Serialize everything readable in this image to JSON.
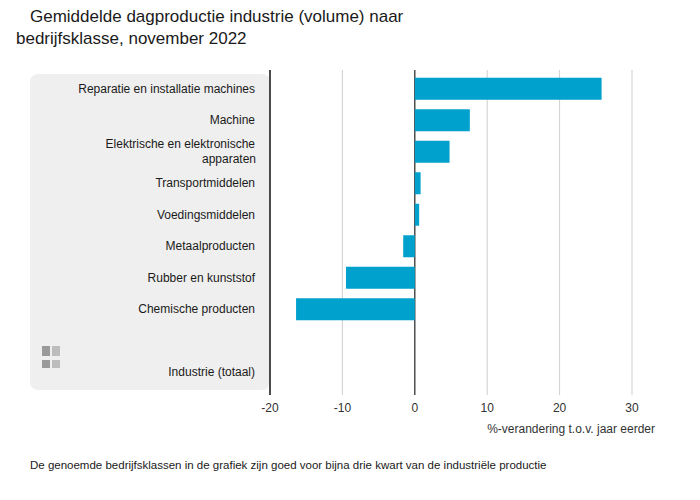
{
  "chart_data": {
    "type": "bar",
    "orientation": "horizontal",
    "title": "Gemiddelde dagproductie industrie (volume) naar bedrijfsklasse, november 2022",
    "categories": [
      "Reparatie en installatie machines",
      "Machine",
      "Elektrische en elektronische apparaten",
      "Transportmiddelen",
      "Voedingsmiddelen",
      "Metaalproducten",
      "Rubber en kunststof",
      "Chemische producten",
      null,
      "Industrie (totaal)"
    ],
    "values": [
      25.8,
      7.6,
      4.8,
      0.8,
      0.6,
      -1.6,
      -9.5,
      -16.4,
      null,
      0
    ],
    "color": "#00a1cd",
    "xlim": [
      -20,
      30
    ],
    "xticks": [
      -20,
      -10,
      0,
      10,
      20,
      30
    ],
    "x_label": "%-verandering t.o.v. jaar eerder",
    "footnote": "De genoemde bedrijfsklassen in de grafiek zijn goed voor bijna drie kwart van de industriële productie",
    "grid": true
  }
}
